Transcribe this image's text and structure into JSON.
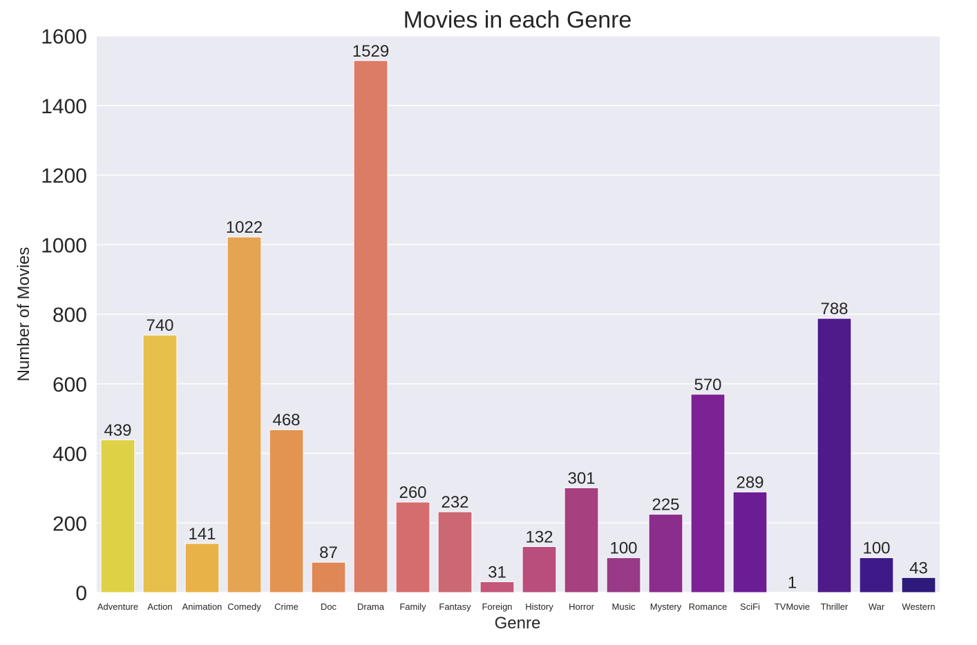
{
  "chart_data": {
    "type": "bar",
    "title": "Movies in each Genre",
    "xlabel": "Genre",
    "ylabel": "Number of Movies",
    "ylim": [
      0,
      1600
    ],
    "yticks": [
      0,
      200,
      400,
      600,
      800,
      1000,
      1200,
      1400,
      1600
    ],
    "grid": true,
    "background": "#eaeaf2",
    "categories": [
      "Adventure",
      "Action",
      "Animation",
      "Comedy",
      "Crime",
      "Doc",
      "Drama",
      "Family",
      "Fantasy",
      "Foreign",
      "History",
      "Horror",
      "Music",
      "Mystery",
      "Romance",
      "SciFi",
      "TVMovie",
      "Thriller",
      "War",
      "Western"
    ],
    "values": [
      439,
      740,
      141,
      1022,
      468,
      87,
      1529,
      260,
      232,
      31,
      132,
      301,
      100,
      225,
      570,
      289,
      1,
      788,
      100,
      43
    ],
    "colors": [
      "#dfd146",
      "#e6c04a",
      "#e9b248",
      "#e5a452",
      "#e39451",
      "#df8755",
      "#da7c66",
      "#d56d6e",
      "#cc6873",
      "#c35779",
      "#b94d7c",
      "#a6407f",
      "#983a86",
      "#8b2d8c",
      "#7d2294",
      "#6c1d95",
      "#5e1a92",
      "#4f1b8a",
      "#3e1a88",
      "#2e1a7a"
    ]
  }
}
